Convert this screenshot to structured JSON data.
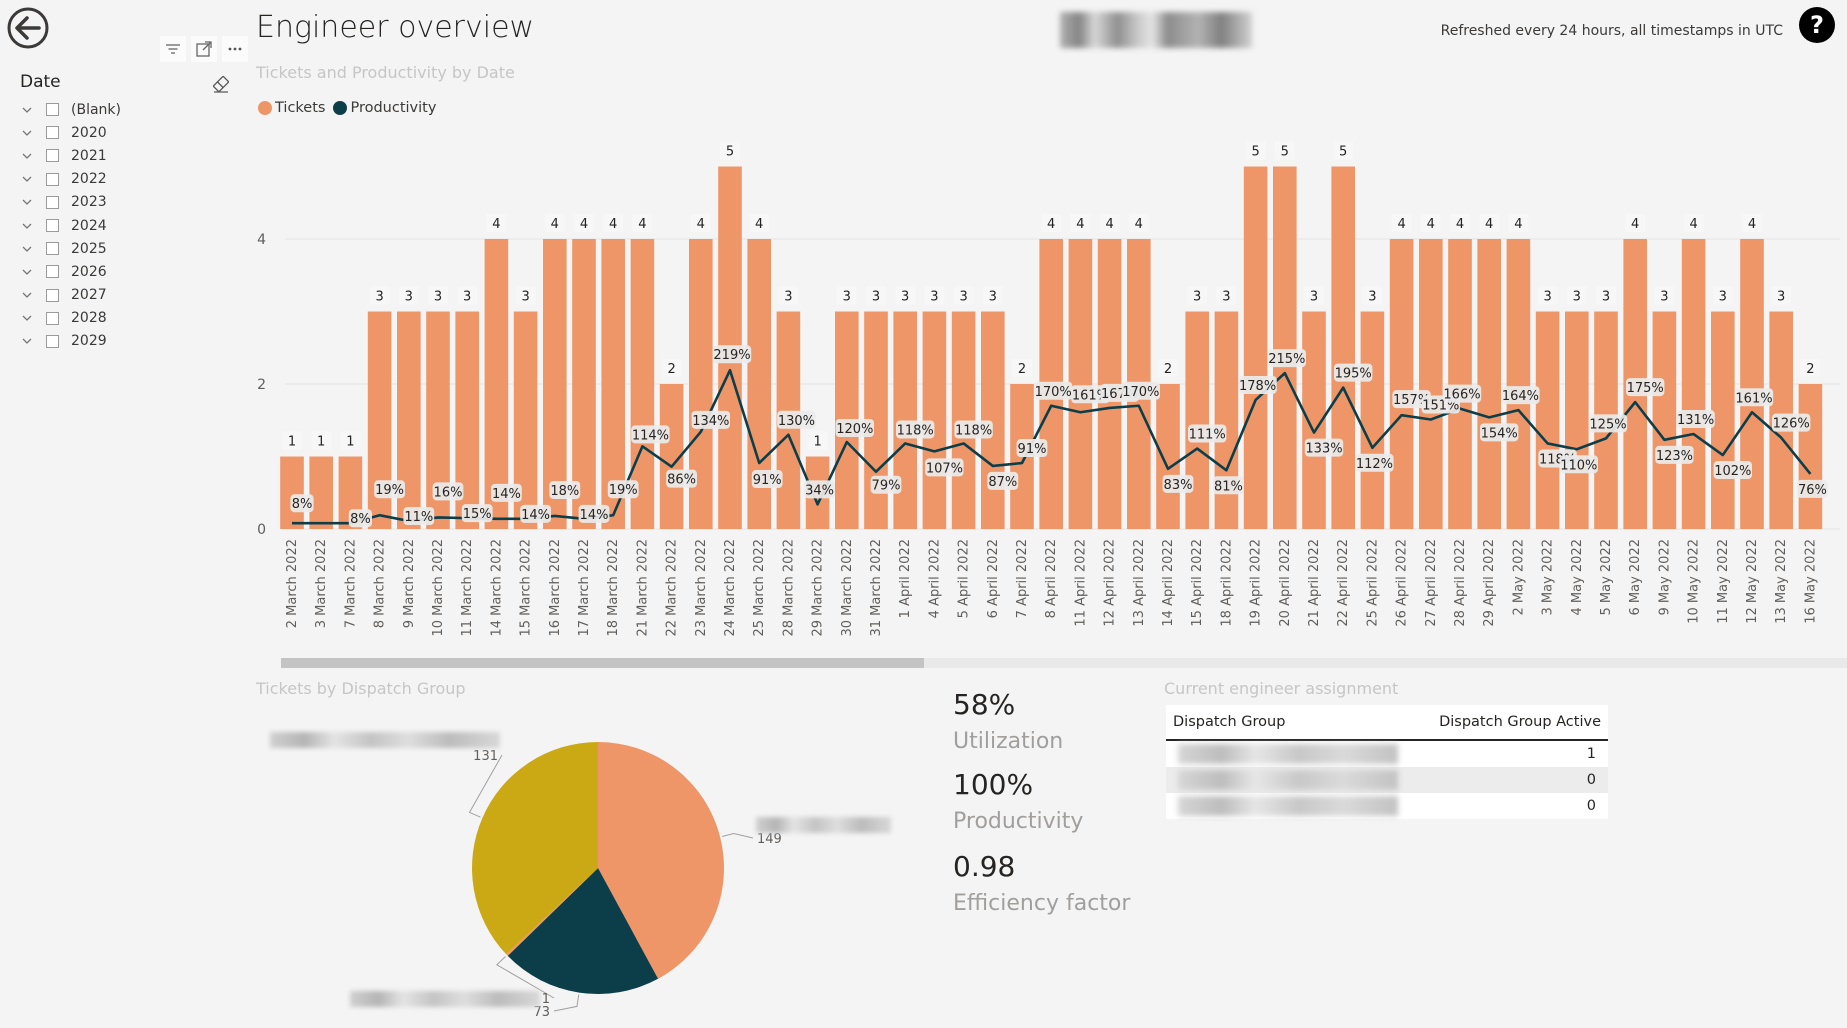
{
  "header": {
    "title": "Engineer overview",
    "refresh_note": "Refreshed every 24 hours, all timestamps in UTC"
  },
  "icons": {
    "back": "arrow-left-circle-icon",
    "help": "question-circle-icon",
    "filter": "filter-icon",
    "focus": "focus-mode-icon",
    "more": "more-options-icon",
    "eraser": "eraser-icon"
  },
  "slicer": {
    "title": "Date",
    "items": [
      "(Blank)",
      "2020",
      "2021",
      "2022",
      "2023",
      "2024",
      "2025",
      "2026",
      "2027",
      "2028",
      "2029"
    ]
  },
  "colors": {
    "tickets": "#EE9668",
    "productivity": "#0C3E4A",
    "pie_gold": "#CBA914",
    "pie_orange": "#EE9668",
    "pie_teal": "#0C3E4A"
  },
  "main_chart": {
    "title": "Tickets and Productivity by Date",
    "legend": [
      "Tickets",
      "Productivity"
    ]
  },
  "chart_data": [
    {
      "type": "bar",
      "title": "Tickets and Productivity by Date",
      "legend_placement": "top-left",
      "yticks": [
        0,
        2,
        4
      ],
      "ylim": [
        0,
        5.5
      ],
      "grid": true,
      "categories": [
        "2 March 2022",
        "3 March 2022",
        "7 March 2022",
        "8 March 2022",
        "9 March 2022",
        "10 March 2022",
        "11 March 2022",
        "14 March 2022",
        "15 March 2022",
        "16 March 2022",
        "17 March 2022",
        "18 March 2022",
        "21 March 2022",
        "22 March 2022",
        "23 March 2022",
        "24 March 2022",
        "25 March 2022",
        "28 March 2022",
        "29 March 2022",
        "30 March 2022",
        "31 March 2022",
        "1 April 2022",
        "4 April 2022",
        "5 April 2022",
        "6 April 2022",
        "7 April 2022",
        "8 April 2022",
        "11 April 2022",
        "12 April 2022",
        "13 April 2022",
        "14 April 2022",
        "15 April 2022",
        "18 April 2022",
        "19 April 2022",
        "20 April 2022",
        "21 April 2022",
        "22 April 2022",
        "25 April 2022",
        "26 April 2022",
        "27 April 2022",
        "28 April 2022",
        "29 April 2022",
        "2 May 2022",
        "3 May 2022",
        "4 May 2022",
        "5 May 2022",
        "6 May 2022",
        "9 May 2022",
        "10 May 2022",
        "11 May 2022",
        "12 May 2022",
        "13 May 2022",
        "16 May 2022"
      ],
      "series": [
        {
          "name": "Tickets",
          "type": "bar",
          "values": [
            1,
            1,
            1,
            3,
            3,
            3,
            3,
            4,
            3,
            4,
            4,
            4,
            4,
            2,
            4,
            5,
            4,
            3,
            1,
            3,
            3,
            3,
            3,
            3,
            3,
            2,
            4,
            4,
            4,
            4,
            2,
            3,
            3,
            5,
            5,
            3,
            5,
            3,
            4,
            4,
            4,
            4,
            4,
            3,
            3,
            3,
            4,
            3,
            4,
            3,
            4,
            3,
            2
          ],
          "labels": [
            "1",
            "1",
            "1",
            "3",
            "3",
            "3",
            "3",
            "4",
            "3",
            "4",
            "4",
            "4",
            "4",
            "2",
            "4",
            "5",
            "4",
            "3",
            "1",
            "3",
            "3",
            "3",
            "3",
            "3",
            "3",
            "2",
            "4",
            "4",
            "4",
            "4",
            "2",
            "3",
            "3",
            "5",
            "5",
            "3",
            "5",
            "3",
            "4",
            "4",
            "4",
            "4",
            "4",
            "3",
            "3",
            "3",
            "4",
            "3",
            "4",
            "3",
            "4",
            "3",
            "2"
          ]
        },
        {
          "name": "Productivity",
          "type": "line",
          "values": [
            8,
            8,
            8,
            19,
            11,
            16,
            15,
            14,
            14,
            18,
            14,
            19,
            114,
            86,
            134,
            219,
            91,
            130,
            34,
            120,
            79,
            118,
            107,
            118,
            87,
            91,
            170,
            161,
            167,
            170,
            83,
            111,
            81,
            178,
            215,
            133,
            195,
            112,
            157,
            151,
            166,
            154,
            164,
            118,
            110,
            125,
            175,
            123,
            131,
            102,
            161,
            126,
            76
          ],
          "labels": [
            "8%",
            "",
            "8%",
            "19%",
            "11%",
            "16%",
            "15%",
            "14%",
            "14%",
            "18%",
            "14%",
            "19%",
            "114%",
            "86%",
            "134%",
            "219%",
            "91%",
            "130%",
            "34%",
            "120%",
            "79%",
            "118%",
            "107%",
            "118%",
            "87%",
            "91%",
            "170%",
            "161%",
            "167%",
            "170%",
            "83%",
            "111%",
            "81%",
            "178%",
            "215%",
            "133%",
            "195%",
            "112%",
            "157%",
            "151%",
            "166%",
            "154%",
            "164%",
            "118%",
            "110%",
            "125%",
            "175%",
            "123%",
            "131%",
            "102%",
            "161%",
            "126%",
            "76%"
          ]
        }
      ]
    },
    {
      "type": "pie",
      "title": "Tickets by Dispatch Group",
      "slices": [
        {
          "value": 149,
          "label": "149",
          "color": "#EE9668"
        },
        {
          "value": 73,
          "label": "73",
          "color": "#0C3E4A"
        },
        {
          "value": 1,
          "label": "1",
          "color": "#EE9668"
        },
        {
          "value": 131,
          "label": "131",
          "color": "#CBA914"
        }
      ]
    }
  ],
  "kpis": [
    {
      "value": "58%",
      "label": "Utilization"
    },
    {
      "value": "100%",
      "label": "Productivity"
    },
    {
      "value": "0.98",
      "label": "Efficiency factor"
    }
  ],
  "assignment_table": {
    "title": "Current engineer assignment",
    "columns": [
      "Dispatch Group",
      "Dispatch Group Active"
    ],
    "rows": [
      {
        "active": "1"
      },
      {
        "active": "0"
      },
      {
        "active": "0"
      }
    ]
  }
}
